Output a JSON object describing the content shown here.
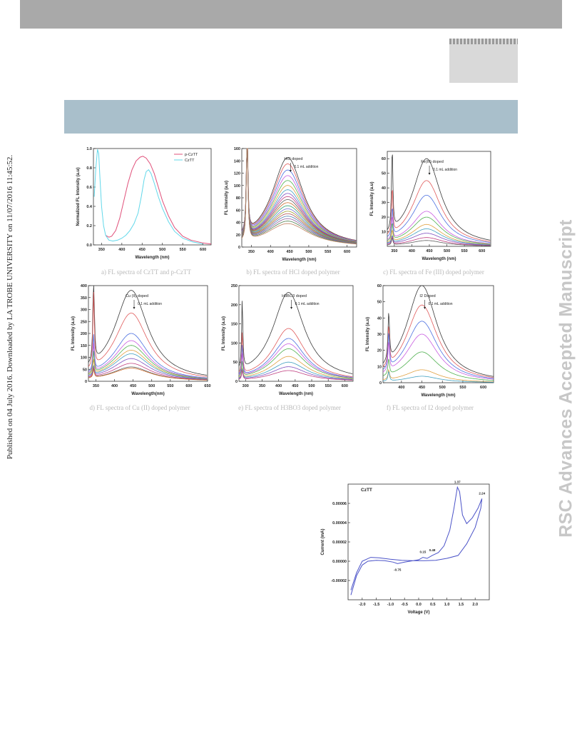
{
  "sidebar_left": "Published on 04 July 2016. Downloaded by LA TROBE UNIVERSITY on 11/07/2016 11:45:52.",
  "sidebar_right": "RSC Advances Accepted Manuscript",
  "captions": {
    "a": "a) FL spectra of CzTT and p-CzTT",
    "b": "b) FL spectra of HCl doped polymer",
    "c": "c) FL spectra of Fe (III) doped polymer",
    "d": "d) FL spectra of Cu (II) doped polymer",
    "e": "e) FL spectra of H3BO3 doped polymer",
    "f": "f) FL spectra of I2 doped polymer"
  },
  "chart_data": [
    {
      "id": "a",
      "type": "line",
      "xlabel": "Wavelength (nm)",
      "ylabel": "Normalized FL Intensity (a.u)",
      "xlim": [
        330,
        620
      ],
      "ylim": [
        0,
        1.0
      ],
      "xticks": [
        350,
        400,
        450,
        500,
        550,
        600
      ],
      "yticks": [
        0.0,
        0.2,
        0.4,
        0.6,
        0.8,
        1.0
      ],
      "legend": "top-right",
      "series": [
        {
          "name": "p-CzTT",
          "color": "#e0507a",
          "x": [
            360,
            368,
            375,
            385,
            395,
            405,
            415,
            425,
            435,
            445,
            452,
            460,
            470,
            480,
            490,
            500,
            515,
            530,
            550,
            570,
            600,
            620
          ],
          "y": [
            0.1,
            0.08,
            0.09,
            0.15,
            0.28,
            0.46,
            0.64,
            0.78,
            0.87,
            0.91,
            0.92,
            0.9,
            0.84,
            0.74,
            0.6,
            0.46,
            0.3,
            0.18,
            0.09,
            0.05,
            0.02,
            0.01
          ]
        },
        {
          "name": "CzTT",
          "color": "#62d8ea",
          "x": [
            332,
            336,
            340,
            343,
            346,
            350,
            355,
            360,
            368,
            378,
            390,
            400,
            410,
            420,
            430,
            440,
            448,
            455,
            460,
            466,
            472,
            480,
            490,
            500,
            515,
            530,
            550,
            575,
            600
          ],
          "y": [
            0.5,
            0.8,
            0.99,
            0.95,
            0.7,
            0.4,
            0.2,
            0.1,
            0.05,
            0.04,
            0.05,
            0.07,
            0.1,
            0.15,
            0.22,
            0.33,
            0.5,
            0.68,
            0.76,
            0.78,
            0.74,
            0.64,
            0.5,
            0.38,
            0.24,
            0.14,
            0.07,
            0.03,
            0.01
          ]
        }
      ]
    },
    {
      "id": "b",
      "type": "line",
      "xlabel": "Wavelength (nm)",
      "ylabel": "FL intensity (a.u)",
      "xlim": [
        325,
        625
      ],
      "ylim": [
        0,
        160
      ],
      "xticks": [
        350,
        400,
        450,
        500,
        550,
        600
      ],
      "yticks": [
        0,
        20,
        40,
        60,
        80,
        100,
        120,
        140,
        160
      ],
      "annotations": [
        "HCl doped",
        "0.1 mL addition"
      ],
      "peak_x": 445,
      "peaks": [
        145,
        135,
        125,
        116,
        108,
        100,
        93,
        87,
        82,
        77,
        72,
        67,
        62,
        58,
        54,
        50,
        46,
        42,
        38
      ]
    },
    {
      "id": "c",
      "type": "line",
      "xlabel": "Wavelength (nm)",
      "ylabel": "FL Intensity (a.u)",
      "xlim": [
        330,
        625
      ],
      "ylim": [
        0,
        65
      ],
      "xticks": [
        350,
        400,
        450,
        500,
        550,
        600
      ],
      "yticks": [
        10,
        20,
        30,
        40,
        50,
        60
      ],
      "annotations": [
        "Fe(III) doped",
        "0.1 mL addition"
      ],
      "peak_x": 442,
      "peaks": [
        60,
        45,
        35,
        24,
        20,
        15,
        12,
        9,
        6,
        4
      ],
      "spikes": [
        56,
        32,
        20,
        16,
        12,
        8
      ]
    },
    {
      "id": "d",
      "type": "line",
      "xlabel": "Wavelength(nm)",
      "ylabel": "FL Intensity (a.u)",
      "xlim": [
        330,
        650
      ],
      "ylim": [
        0,
        400
      ],
      "xticks": [
        350,
        400,
        450,
        500,
        550,
        600,
        650
      ],
      "yticks": [
        0,
        50,
        100,
        150,
        200,
        250,
        300,
        350,
        400
      ],
      "annotations": [
        "Cu (II) doped",
        "0.1 mL addition"
      ],
      "peak_x": 445,
      "peaks": [
        380,
        285,
        200,
        170,
        150,
        130,
        115,
        95,
        75,
        60,
        55
      ],
      "spikes": [
        400,
        310,
        150,
        120,
        90,
        60
      ]
    },
    {
      "id": "e",
      "type": "line",
      "xlabel": "Wavelength (nm)",
      "ylabel": "FL Intensity (a.u)",
      "xlim": [
        280,
        625
      ],
      "ylim": [
        0,
        250
      ],
      "xticks": [
        300,
        350,
        400,
        450,
        500,
        550,
        600
      ],
      "yticks": [
        0,
        50,
        100,
        150,
        200,
        250
      ],
      "annotations": [
        "H3BO3 doped",
        "0.1 mL addition"
      ],
      "peak_x": 430,
      "peaks": [
        232,
        138,
        112,
        98,
        85,
        65,
        50,
        38,
        28
      ],
      "spikes": [
        182,
        110,
        80,
        60,
        40
      ]
    },
    {
      "id": "f",
      "type": "line",
      "xlabel": "Wavelength (nm)",
      "ylabel": "FL Intensity (a.u)",
      "xlim": [
        355,
        625
      ],
      "ylim": [
        0,
        60
      ],
      "xticks": [
        400,
        450,
        500,
        550,
        600
      ],
      "yticks": [
        0,
        10,
        20,
        30,
        40,
        50,
        60
      ],
      "annotations": [
        "I2 Doped",
        "0.1 mL addition"
      ],
      "peak_x": 450,
      "peaks": [
        60,
        48,
        38,
        30,
        19,
        8,
        4
      ],
      "spikes": [
        30,
        24,
        22,
        18,
        10
      ]
    },
    {
      "id": "cv",
      "type": "line",
      "title": "CzTT",
      "xlabel": "Voltage (V)",
      "ylabel": "Current (mA)",
      "xlim": [
        -2.5,
        2.5
      ],
      "ylim": [
        -4e-05,
        8e-05
      ],
      "xticks": [
        -2.0,
        -1.5,
        -1.0,
        -0.5,
        0.0,
        0.5,
        1.0,
        1.5,
        2.0
      ],
      "yticks": [
        -2e-05,
        0.0,
        2e-05,
        4e-05,
        6e-05
      ],
      "ytick_labels": [
        "-0.00002",
        "0.00000",
        "0.00002",
        "0.00004",
        "0.00006"
      ],
      "peak_labels": [
        "-0.75",
        "0.15",
        "0.48",
        "1.37",
        "2.24"
      ],
      "series": [
        {
          "name": "CzTT",
          "color": "#4a52c8",
          "x": [
            -2.4,
            -2.2,
            -2.0,
            -1.8,
            -1.5,
            -1.2,
            -0.9,
            -0.75,
            -0.5,
            -0.2,
            0.0,
            0.15,
            0.3,
            0.48,
            0.7,
            0.9,
            1.1,
            1.25,
            1.37,
            1.45,
            1.55,
            1.7,
            1.9,
            2.1,
            2.24,
            2.2,
            2.0,
            1.7,
            1.4,
            1.0,
            0.6,
            0.2,
            -0.2,
            -0.6,
            -1.0,
            -1.4,
            -1.7,
            -2.0,
            -2.2,
            -2.4
          ],
          "y": [
            -3.5e-05,
            -1.5e-05,
            -4e-06,
            0.0,
            1e-06,
            5e-07,
            -1e-06,
            -2.5e-06,
            -1e-06,
            5e-07,
            1.5e-06,
            4e-06,
            3e-06,
            6e-06,
            9e-06,
            1.6e-05,
            3.2e-05,
            5.5e-05,
            7.68e-05,
            7.2e-05,
            4.8e-05,
            3.9e-05,
            4.5e-05,
            5.5e-05,
            6.5e-05,
            5.5e-05,
            3.5e-05,
            1.8e-05,
            6e-06,
            3e-06,
            1e-06,
            5e-07,
            5e-07,
            1e-06,
            2e-06,
            3.5e-06,
            4e-06,
            0.0,
            -1.2e-05,
            -3e-05
          ]
        }
      ]
    }
  ]
}
